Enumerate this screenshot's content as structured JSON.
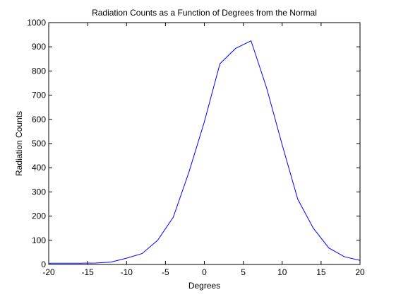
{
  "chart_data": {
    "type": "line",
    "title": "Radiation Counts as a Function of Degrees from the Normal",
    "xlabel": "Degrees",
    "ylabel": "Radiation Counts",
    "xlim": [
      -20,
      20
    ],
    "ylim": [
      0,
      1000
    ],
    "xticks": [
      -20,
      -15,
      -10,
      -5,
      0,
      5,
      10,
      15,
      20
    ],
    "yticks": [
      0,
      100,
      200,
      300,
      400,
      500,
      600,
      700,
      800,
      900,
      1000
    ],
    "xtick_labels": [
      "-20",
      "-15",
      "-10",
      "-5",
      "0",
      "5",
      "10",
      "15",
      "20"
    ],
    "ytick_labels": [
      "0",
      "100",
      "200",
      "300",
      "400",
      "500",
      "600",
      "700",
      "800",
      "900",
      "1000"
    ],
    "grid": false,
    "legend": "none",
    "series": [
      {
        "color": "#0000ff",
        "x": [
          -20,
          -18,
          -16,
          -14,
          -12,
          -10,
          -8,
          -6,
          -4,
          -2,
          0,
          2,
          4,
          6,
          8,
          10,
          12,
          14,
          16,
          18,
          20
        ],
        "y": [
          5,
          5,
          5,
          6,
          10,
          26,
          45,
          100,
          195,
          380,
          590,
          830,
          893,
          925,
          730,
          495,
          270,
          150,
          68,
          32,
          17
        ]
      }
    ]
  }
}
